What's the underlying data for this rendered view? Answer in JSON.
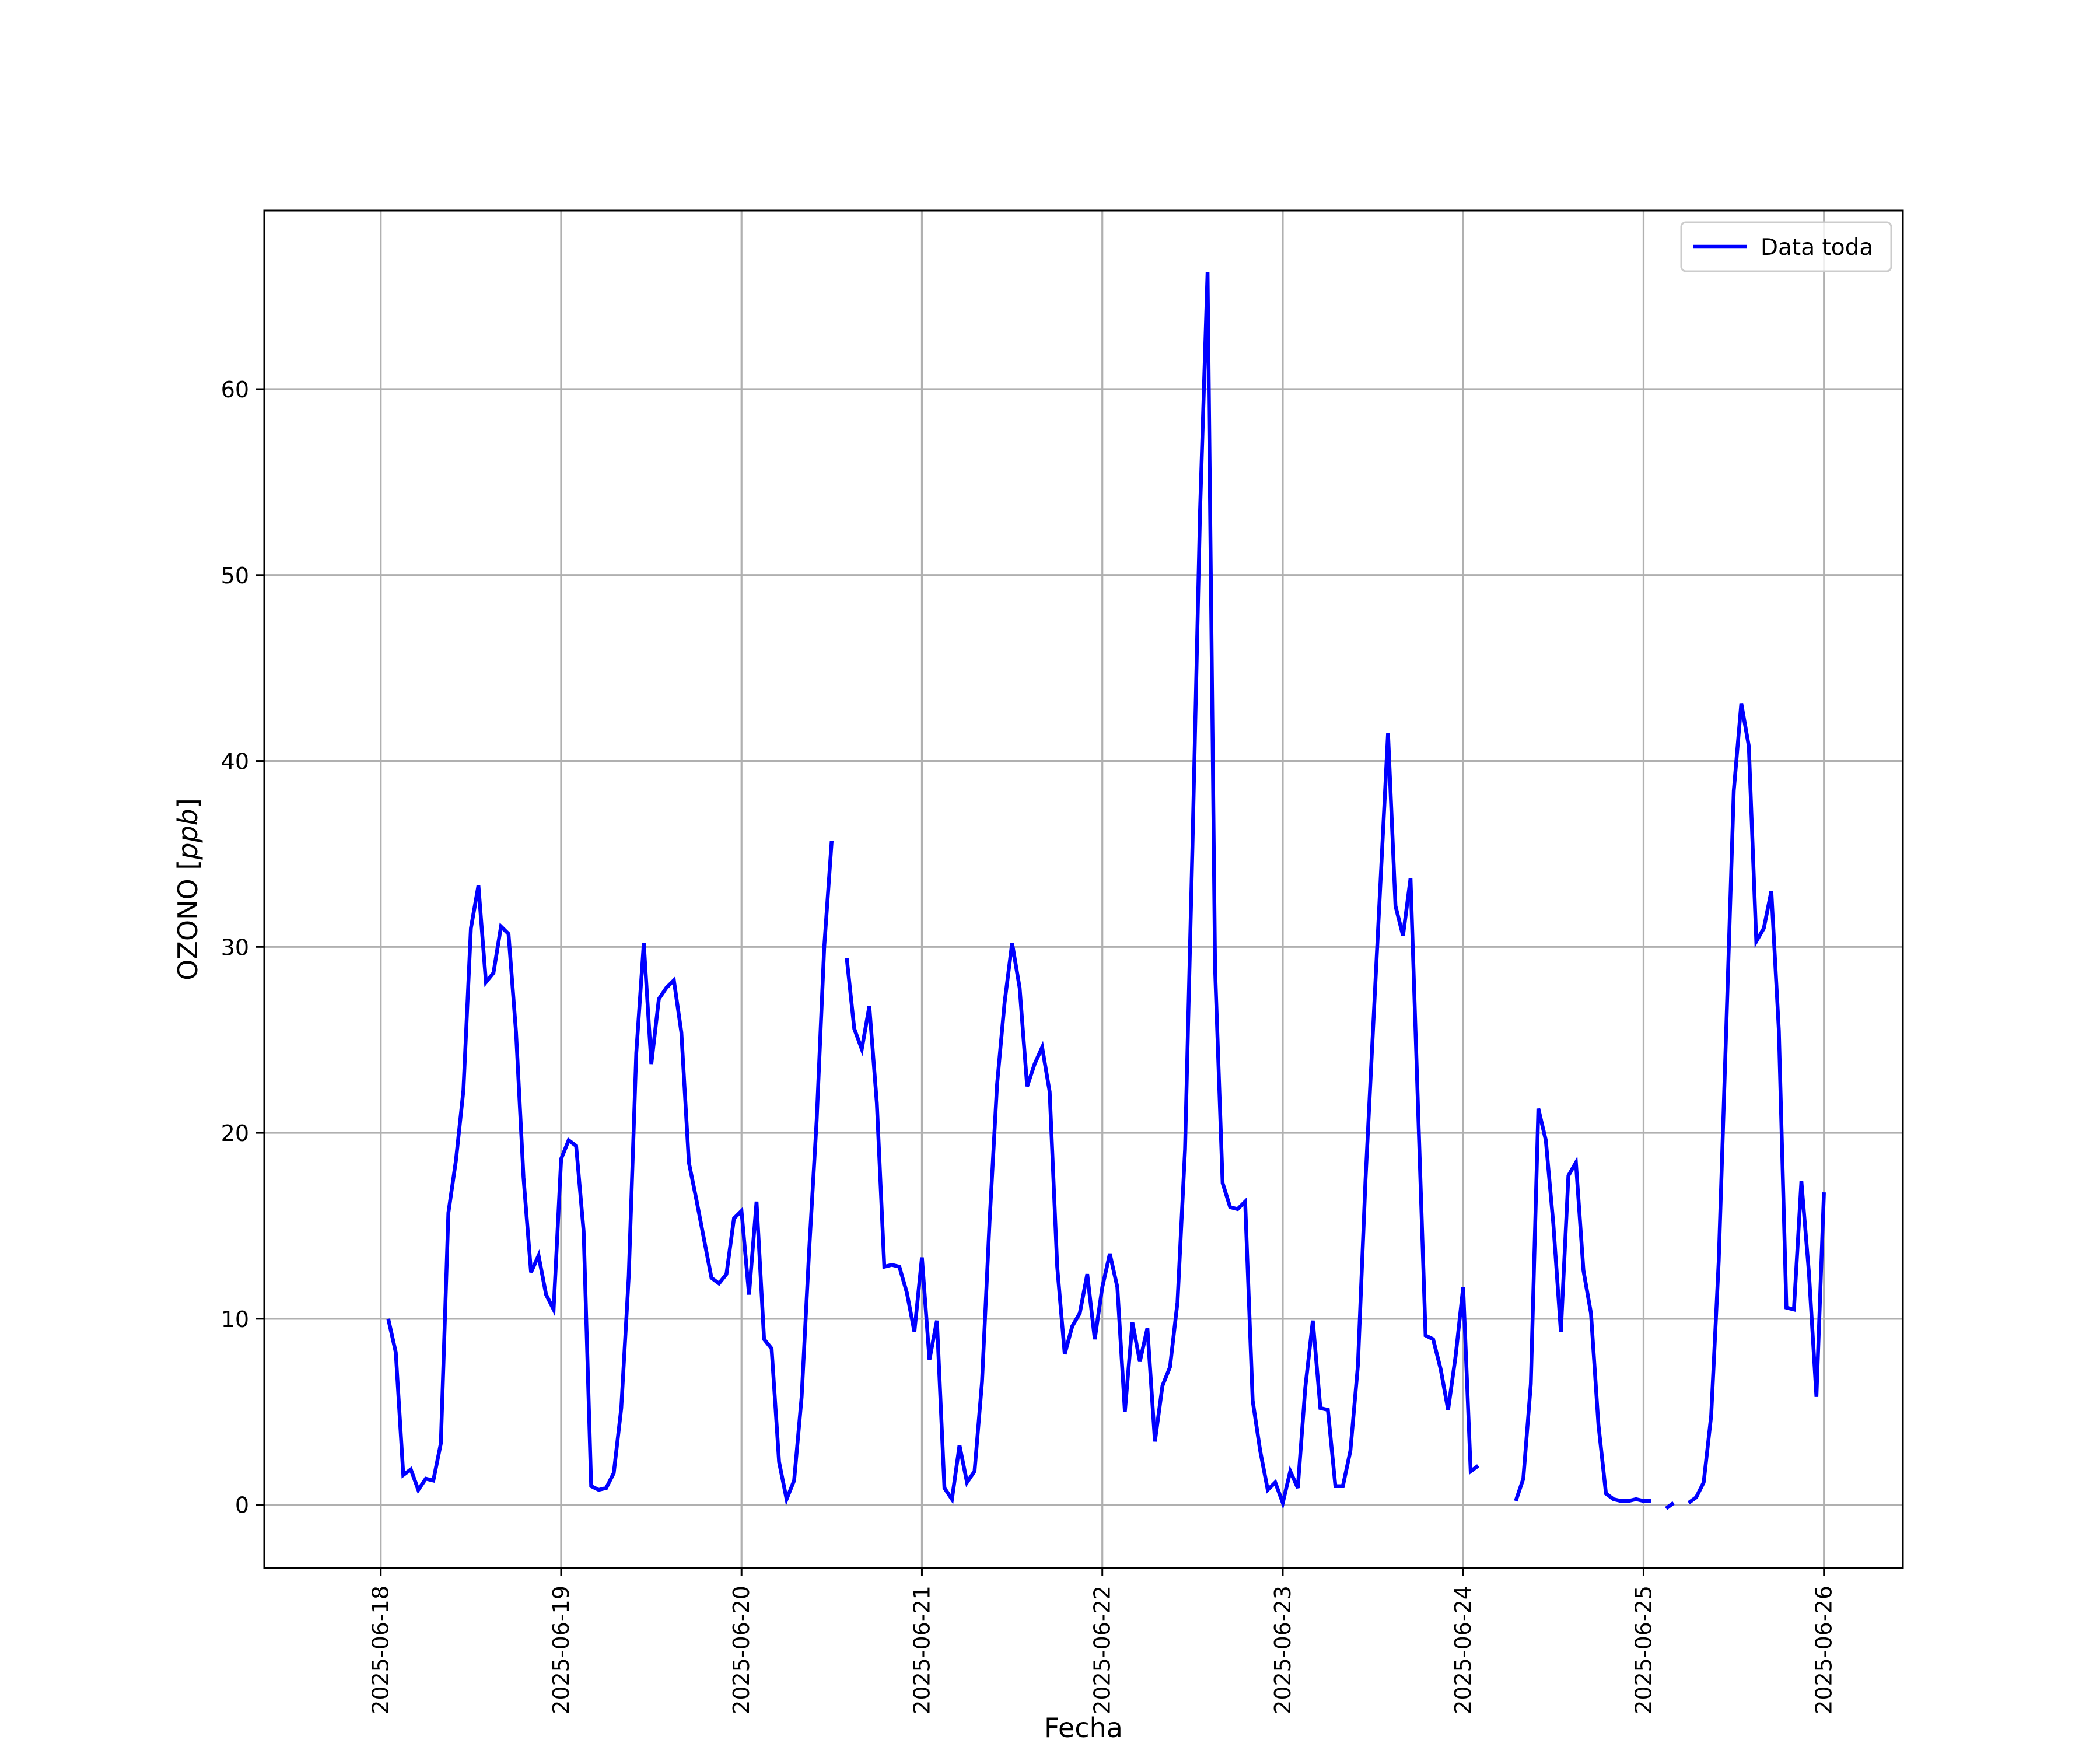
{
  "chart_data": {
    "type": "line",
    "title": "",
    "xlabel": "Fecha",
    "ylabel": "OZONO [ppb]",
    "ylabel_parts": {
      "main": "OZONO [",
      "unit": "ppb",
      "close": "]"
    },
    "x_ticks": [
      "2025-06-18",
      "2025-06-19",
      "2025-06-20",
      "2025-06-21",
      "2025-06-22",
      "2025-06-23",
      "2025-06-24",
      "2025-06-25",
      "2025-06-26"
    ],
    "y_ticks": [
      0,
      10,
      20,
      30,
      40,
      50,
      60
    ],
    "xlim": [
      "2025-06-17 08:30",
      "2025-06-26 10:30"
    ],
    "ylim": [
      -3.4,
      69.6
    ],
    "grid": true,
    "legend": {
      "position": "top-right",
      "entries": [
        "Data toda"
      ]
    },
    "series": [
      {
        "name": "Data toda",
        "color": "#0000ff",
        "start": "2025-06-18 01:00",
        "step_hours": 1,
        "values": [
          10.0,
          8.2,
          1.6,
          1.9,
          0.8,
          1.4,
          1.3,
          3.3,
          15.7,
          18.5,
          22.3,
          31.0,
          33.3,
          28.1,
          28.6,
          31.1,
          30.7,
          25.4,
          17.6,
          12.5,
          13.4,
          11.3,
          10.5,
          18.6,
          19.6,
          19.3,
          14.7,
          1.0,
          0.8,
          0.9,
          1.7,
          5.2,
          12.3,
          24.3,
          30.2,
          23.7,
          27.2,
          27.8,
          28.2,
          25.4,
          18.4,
          16.4,
          14.3,
          12.2,
          11.9,
          12.4,
          15.4,
          15.8,
          11.3,
          16.3,
          8.9,
          8.4,
          2.3,
          0.3,
          1.3,
          5.8,
          13.7,
          20.7,
          30.0,
          35.7,
          null,
          29.4,
          25.6,
          24.5,
          26.8,
          21.6,
          12.8,
          12.9,
          12.8,
          11.4,
          9.3,
          13.3,
          7.8,
          9.9,
          0.9,
          0.3,
          3.2,
          1.2,
          1.8,
          6.6,
          15.2,
          22.6,
          27.0,
          30.2,
          27.8,
          22.5,
          23.7,
          24.6,
          22.2,
          12.8,
          8.1,
          9.6,
          10.3,
          12.4,
          8.9,
          11.7,
          13.5,
          11.7,
          5.0,
          9.8,
          7.7,
          9.5,
          3.4,
          6.4,
          7.4,
          10.9,
          19.1,
          35.5,
          53.4,
          66.3,
          28.8,
          17.3,
          16.0,
          15.9,
          16.3,
          5.6,
          2.9,
          0.8,
          1.2,
          0.1,
          1.8,
          0.9,
          6.3,
          9.9,
          5.2,
          5.1,
          1.0,
          1.0,
          2.9,
          7.5,
          17.4,
          25.5,
          33.5,
          41.5,
          32.2,
          30.6,
          33.7,
          21.3,
          9.1,
          8.9,
          7.3,
          5.1,
          8.0,
          11.7,
          1.8,
          2.1,
          null,
          null,
          null,
          null,
          0.2,
          1.4,
          6.5,
          21.3,
          19.6,
          15.1,
          9.3,
          17.7,
          18.4,
          12.6,
          10.3,
          4.3,
          0.6,
          0.3,
          0.2,
          0.2,
          0.3,
          0.2,
          0.2,
          null,
          -0.2,
          0.1,
          null,
          0.1,
          0.4,
          1.2,
          4.8,
          13.1,
          25.6,
          38.4,
          43.1,
          40.8,
          30.3,
          31.0,
          33.0,
          25.5,
          10.6,
          10.5,
          17.4,
          12.5,
          5.8,
          16.8
        ]
      }
    ]
  }
}
